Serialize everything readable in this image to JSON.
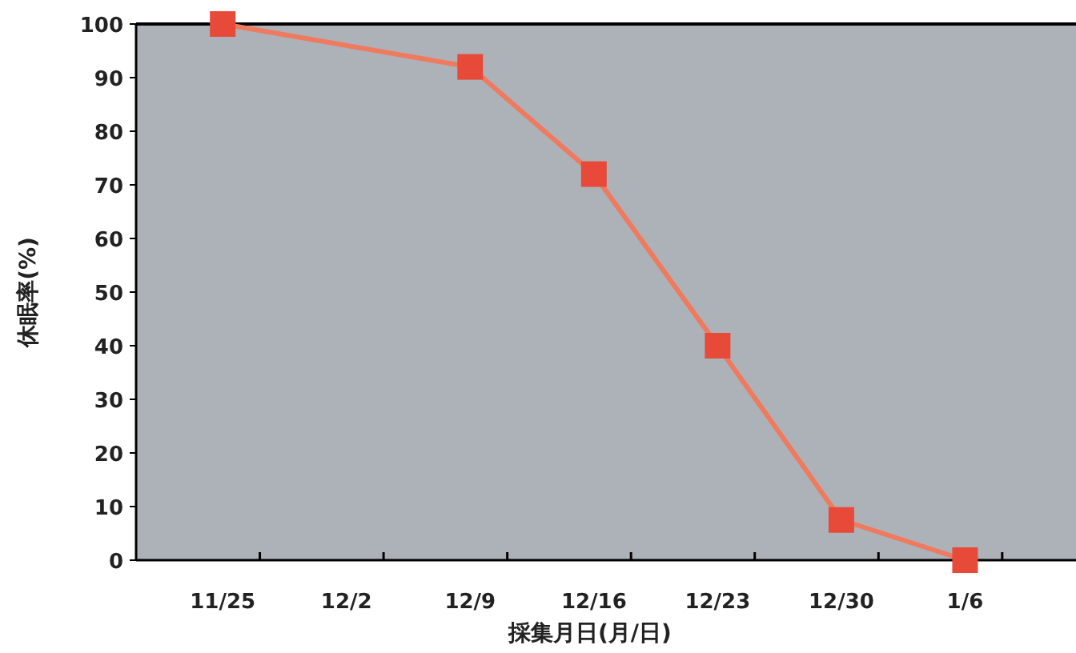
{
  "chart_data": {
    "type": "line",
    "xlabel": "採集月日(月/日)",
    "ylabel": "休眠率(%)",
    "categories": [
      "11/25",
      "12/2",
      "12/9",
      "12/16",
      "12/23",
      "12/30",
      "1/6"
    ],
    "series": [
      {
        "color": "#e84a3a",
        "values": [
          100,
          null,
          92,
          72,
          40,
          7.5,
          0
        ]
      }
    ],
    "marker": "square",
    "line_style": "solid",
    "ylim": [
      0,
      100
    ],
    "yticks": [
      0,
      10,
      20,
      30,
      40,
      50,
      60,
      70,
      80,
      90,
      100
    ],
    "grid": false
  }
}
